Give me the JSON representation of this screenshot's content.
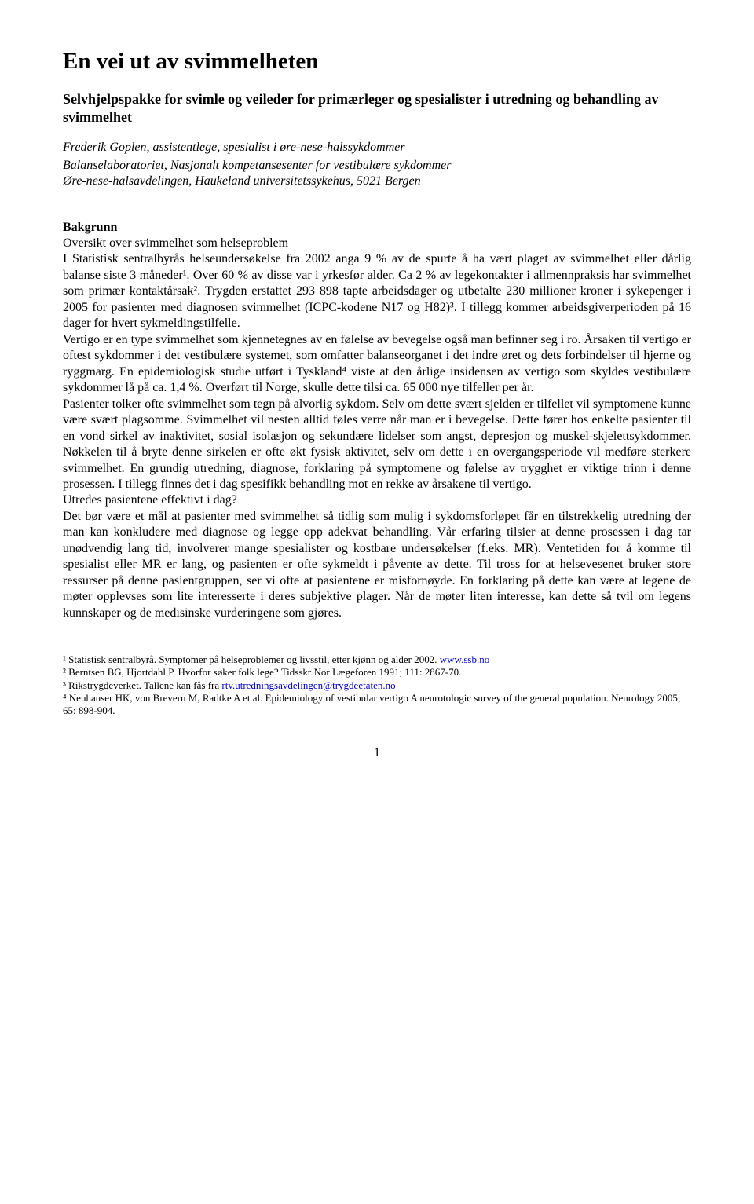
{
  "title": "En vei ut av svimmelheten",
  "subtitle": "Selvhjelpspakke for svimle og veileder for primærleger og spesialister i utredning og behandling av svimmelhet",
  "author": "Frederik Goplen, assistentlege, spesialist i øre-nese-halssykdommer",
  "affil1": "Balanselaboratoriet, Nasjonalt kompetansesenter for vestibulære sykdommer",
  "affil2": "Øre-nese-halsavdelingen, Haukeland universitetssykehus, 5021 Bergen",
  "section1_head": "Bakgrunn",
  "sub1": "Oversikt over svimmelhet som helseproblem",
  "p1": "I Statistisk sentralbyrås helseundersøkelse fra 2002 anga 9 % av de spurte å ha vært plaget av svimmelhet eller dårlig balanse siste 3 måneder¹. Over 60 % av disse var i yrkesfør alder. Ca 2 % av legekontakter i allmennpraksis har svimmelhet som primær kontaktårsak². Trygden erstattet 293 898 tapte arbeidsdager og utbetalte 230 millioner kroner i sykepenger i 2005 for pasienter med diagnosen svimmelhet (ICPC-kodene N17 og H82)³. I tillegg kommer arbeidsgiverperioden på 16 dager for hvert sykmeldingstilfelle.",
  "p2": "Vertigo er en type svimmelhet som kjennetegnes av en følelse av bevegelse også man befinner seg i ro. Årsaken til vertigo er oftest sykdommer i det vestibulære systemet, som omfatter balanseorganet i det indre øret og dets forbindelser til hjerne og ryggmarg. En epidemiologisk studie utført i Tyskland⁴ viste at den årlige insidensen av vertigo som skyldes vestibulære sykdommer lå på ca. 1,4 %. Overført til Norge, skulle dette tilsi ca. 65 000 nye tilfeller per år.",
  "p3": "Pasienter tolker ofte svimmelhet som tegn på alvorlig sykdom. Selv om dette svært sjelden er tilfellet vil symptomene kunne være svært plagsomme. Svimmelhet vil nesten alltid føles verre når man er i bevegelse. Dette fører hos enkelte pasienter til en vond sirkel av inaktivitet, sosial isolasjon og sekundære lidelser som angst, depresjon og muskel-skjelettsykdommer. Nøkkelen til å bryte denne sirkelen er ofte økt fysisk aktivitet, selv om dette i en overgangsperiode vil medføre sterkere svimmelhet. En grundig utredning, diagnose, forklaring på symptomene og følelse av trygghet er viktige trinn i denne prosessen. I tillegg finnes det i dag spesifikk behandling mot en rekke av årsakene til vertigo.",
  "sub2": "Utredes pasientene effektivt i dag?",
  "p4": "Det bør være et mål at pasienter med svimmelhet så tidlig som mulig i sykdomsforløpet får en tilstrekkelig utredning der man kan konkludere med diagnose og legge opp adekvat behandling. Vår erfaring tilsier at denne prosessen i dag tar unødvendig lang tid, involverer mange spesialister og kostbare undersøkelser (f.eks. MR). Ventetiden for å komme til spesialist eller MR er lang, og pasienten er ofte sykmeldt i påvente av dette. Til tross for at helsevesenet bruker store ressurser på denne pasientgruppen, ser vi ofte at pasientene er misfornøyde. En forklaring på dette kan være at legene de møter opplevses som lite interesserte i deres subjektive plager. Når de møter liten interesse, kan dette så tvil om legens kunnskaper og de medisinske vurderingene som gjøres.",
  "footnotes": {
    "f1_pre": "¹ Statistisk sentralbyrå. Symptomer på helseproblemer og livsstil, etter kjønn og alder 2002. ",
    "f1_link": "www.ssb.no",
    "f2": "² Berntsen BG, Hjortdahl P. Hvorfor søker folk lege? Tidsskr Nor Lægeforen 1991; 111: 2867-70.",
    "f3_pre": "³ Rikstrygdeverket. Tallene kan fås fra ",
    "f3_link": "rtv.utredningsavdelingen@trygdeetaten.no",
    "f4": "⁴ Neuhauser HK, von Brevern M, Radtke A et al. Epidemiology of vestibular vertigo A neurotologic survey of the general population. Neurology 2005; 65: 898-904."
  },
  "pagenum": "1"
}
